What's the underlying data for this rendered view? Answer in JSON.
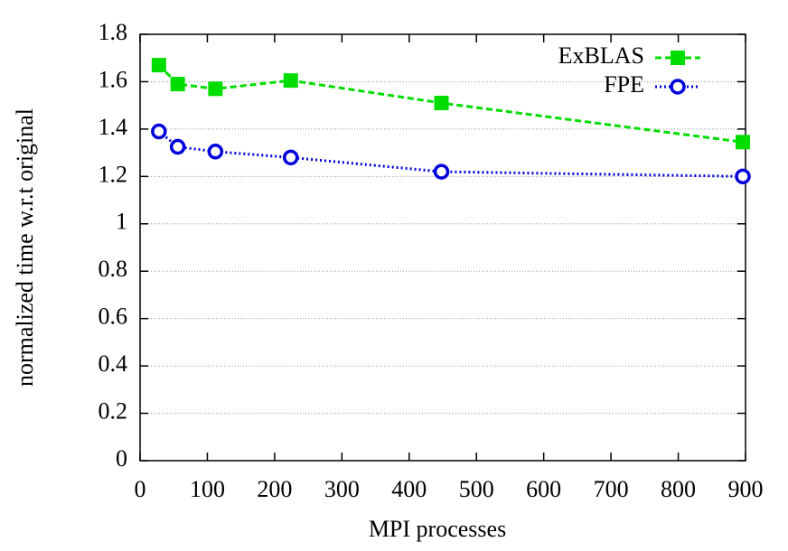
{
  "chart_data": {
    "type": "line",
    "x_label": "MPI processes",
    "y_label": "normalized time w.r.t original",
    "x": [
      28,
      56,
      112,
      224,
      448,
      896
    ],
    "series": [
      {
        "name": "ExBLAS",
        "color": "#00dd00",
        "marker": "square",
        "dash": "dashed",
        "values": [
          1.67,
          1.59,
          1.57,
          1.605,
          1.51,
          1.345
        ]
      },
      {
        "name": "FPE",
        "color": "#0000dd",
        "marker": "circle",
        "dash": "dotted",
        "values": [
          1.39,
          1.325,
          1.305,
          1.28,
          1.22,
          1.2
        ]
      }
    ],
    "xlim": [
      0,
      900
    ],
    "xticks": [
      0,
      100,
      200,
      300,
      400,
      500,
      600,
      700,
      800,
      900
    ],
    "ylim": [
      0,
      1.8
    ],
    "yticks": [
      0,
      0.2,
      0.4,
      0.6,
      0.8,
      1,
      1.2,
      1.4,
      1.6,
      1.8
    ],
    "grid": true,
    "legend": "top-right"
  }
}
